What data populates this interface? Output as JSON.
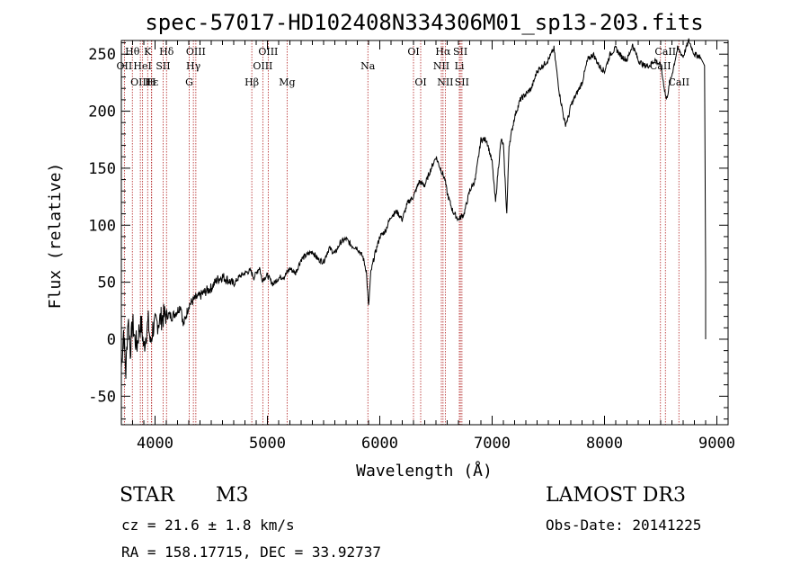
{
  "chart_data": {
    "type": "line",
    "title": "spec-57017-HD102408N334306M01_sp13-203.fits",
    "xlabel": "Wavelength (Å)",
    "ylabel": "Flux (relative)",
    "xlim": [
      3700,
      9100
    ],
    "ylim": [
      -75,
      262
    ],
    "x_ticks": [
      4000,
      5000,
      6000,
      7000,
      8000,
      9000
    ],
    "y_ticks": [
      -50,
      0,
      50,
      100,
      150,
      200,
      250
    ],
    "series": [
      {
        "name": "flux",
        "x": [
          3700,
          3720,
          3740,
          3760,
          3780,
          3800,
          3820,
          3840,
          3860,
          3880,
          3900,
          3920,
          3940,
          3960,
          3980,
          4000,
          4050,
          4100,
          4150,
          4200,
          4230,
          4250,
          4270,
          4300,
          4350,
          4400,
          4450,
          4500,
          4550,
          4600,
          4650,
          4700,
          4750,
          4800,
          4850,
          4880,
          4900,
          4930,
          4950,
          5000,
          5050,
          5100,
          5150,
          5200,
          5250,
          5300,
          5350,
          5400,
          5450,
          5500,
          5550,
          5600,
          5650,
          5700,
          5750,
          5800,
          5850,
          5880,
          5900,
          5920,
          5950,
          6000,
          6050,
          6100,
          6150,
          6200,
          6250,
          6300,
          6350,
          6400,
          6450,
          6500,
          6550,
          6560,
          6580,
          6600,
          6650,
          6700,
          6750,
          6800,
          6850,
          6900,
          6950,
          7000,
          7030,
          7050,
          7080,
          7100,
          7130,
          7150,
          7200,
          7250,
          7300,
          7350,
          7400,
          7450,
          7500,
          7550,
          7600,
          7650,
          7680,
          7700,
          7750,
          7800,
          7850,
          7900,
          7950,
          8000,
          8050,
          8100,
          8150,
          8200,
          8250,
          8300,
          8350,
          8400,
          8450,
          8500,
          8550,
          8600,
          8650,
          8700,
          8750,
          8800,
          8850,
          8890,
          8900,
          8900
        ],
        "y": [
          -25,
          8,
          -30,
          20,
          -10,
          15,
          0,
          -5,
          10,
          12,
          -8,
          5,
          15,
          -5,
          10,
          12,
          18,
          22,
          20,
          25,
          30,
          12,
          18,
          30,
          35,
          38,
          42,
          45,
          52,
          55,
          52,
          48,
          55,
          58,
          60,
          54,
          58,
          63,
          52,
          56,
          48,
          54,
          55,
          62,
          58,
          70,
          74,
          77,
          70,
          68,
          80,
          75,
          85,
          88,
          82,
          80,
          72,
          60,
          28,
          58,
          72,
          90,
          95,
          108,
          112,
          105,
          120,
          125,
          138,
          135,
          148,
          160,
          147,
          145,
          140,
          128,
          112,
          105,
          110,
          130,
          140,
          175,
          175,
          155,
          120,
          145,
          175,
          170,
          110,
          170,
          195,
          210,
          215,
          220,
          235,
          240,
          245,
          255,
          215,
          188,
          195,
          205,
          215,
          225,
          245,
          250,
          240,
          235,
          250,
          255,
          248,
          245,
          258,
          245,
          240,
          240,
          245,
          240,
          210,
          232,
          255,
          248,
          262,
          250,
          248,
          240,
          60,
          0
        ],
        "peak_annotation": "maximum near 8800 Å"
      }
    ],
    "line_markers": [
      {
        "label": "Hθ",
        "x": 3798,
        "row": 0
      },
      {
        "label": "OII",
        "x": 3727,
        "row": 1
      },
      {
        "label": "OIII",
        "x": 3869,
        "row": 2
      },
      {
        "label": "K",
        "x": 3934,
        "row": 0
      },
      {
        "label": "HeI",
        "x": 3889,
        "row": 1
      },
      {
        "label": "Hε",
        "x": 3970,
        "row": 2
      },
      {
        "label": "H",
        "x": 3968,
        "row": 2
      },
      {
        "label": "SII",
        "x": 4072,
        "row": 1
      },
      {
        "label": "Hδ",
        "x": 4102,
        "row": 0
      },
      {
        "label": "OIII",
        "x": 4363,
        "row": 0
      },
      {
        "label": "Hγ",
        "x": 4341,
        "row": 1
      },
      {
        "label": "G",
        "x": 4304,
        "row": 2
      },
      {
        "label": "Hβ",
        "x": 4861,
        "row": 2
      },
      {
        "label": "OIII",
        "x": 5007,
        "row": 0
      },
      {
        "label": "OIII",
        "x": 4959,
        "row": 1
      },
      {
        "label": "Mg",
        "x": 5175,
        "row": 2
      },
      {
        "label": "Na",
        "x": 5894,
        "row": 1
      },
      {
        "label": "OI",
        "x": 6300,
        "row": 0
      },
      {
        "label": "OI",
        "x": 6364,
        "row": 2
      },
      {
        "label": "Hα",
        "x": 6563,
        "row": 0
      },
      {
        "label": "NII",
        "x": 6548,
        "row": 1
      },
      {
        "label": "NII",
        "x": 6583,
        "row": 2
      },
      {
        "label": "SII",
        "x": 6717,
        "row": 0
      },
      {
        "label": "Li",
        "x": 6708,
        "row": 1
      },
      {
        "label": "SII",
        "x": 6731,
        "row": 2
      },
      {
        "label": "CaII",
        "x": 8542,
        "row": 0
      },
      {
        "label": "CaII",
        "x": 8498,
        "row": 1
      },
      {
        "label": "CaII",
        "x": 8662,
        "row": 2
      }
    ]
  },
  "info": {
    "class": "STAR",
    "subclass": "M3",
    "survey": "LAMOST DR3",
    "cz": "cz = 21.6 ± 1.8 km/s",
    "obs_date": "Obs-Date: 20141225",
    "coords": "RA = 158.17715, DEC =  33.92737"
  }
}
